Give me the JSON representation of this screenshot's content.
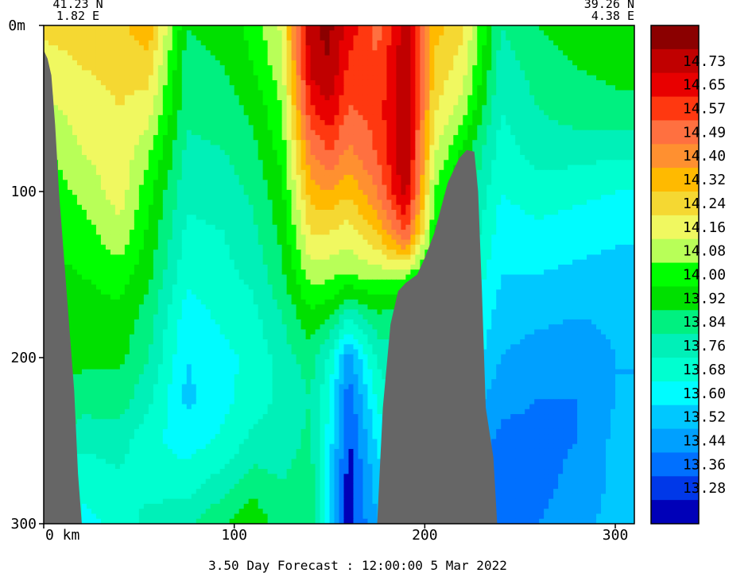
{
  "chart_data": {
    "type": "heatmap",
    "title": "",
    "caption": "3.50 Day Forecast : 12:00:00   5 Mar 2022",
    "xlabel": "",
    "ylabel": "",
    "x_units": "km",
    "y_units": "m",
    "xlim": [
      0,
      310
    ],
    "ylim": [
      0,
      300
    ],
    "y_inverted": true,
    "grid": false,
    "start_point": {
      "lat": "41.23 N",
      "lon": "1.82 E"
    },
    "end_point": {
      "lat": "39.26 N",
      "lon": "4.38 E"
    },
    "x_ticks": [
      {
        "value": 0,
        "label": "0 km"
      },
      {
        "value": 100,
        "label": "100"
      },
      {
        "value": 200,
        "label": "200"
      },
      {
        "value": 300,
        "label": "300"
      }
    ],
    "y_ticks": [
      {
        "value": 0,
        "label": "0m"
      },
      {
        "value": 100,
        "label": "100"
      },
      {
        "value": 200,
        "label": "200"
      },
      {
        "value": 300,
        "label": "300"
      }
    ],
    "colorbar": {
      "placement": "right",
      "levels": [
        {
          "label": "",
          "color": "#8b0000"
        },
        {
          "label": "14.73",
          "color": "#c00000"
        },
        {
          "label": "14.65",
          "color": "#e80000"
        },
        {
          "label": "14.57",
          "color": "#ff3810"
        },
        {
          "label": "14.49",
          "color": "#ff7040"
        },
        {
          "label": "14.40",
          "color": "#ff9030"
        },
        {
          "label": "14.32",
          "color": "#ffba00"
        },
        {
          "label": "14.24",
          "color": "#f5d832"
        },
        {
          "label": "14.16",
          "color": "#f0f860"
        },
        {
          "label": "14.08",
          "color": "#b8ff58"
        },
        {
          "label": "14.00",
          "color": "#00ff00"
        },
        {
          "label": "13.92",
          "color": "#00e000"
        },
        {
          "label": "13.84",
          "color": "#00f080"
        },
        {
          "label": "13.76",
          "color": "#00f0b8"
        },
        {
          "label": "13.68",
          "color": "#00ffd0"
        },
        {
          "label": "13.60",
          "color": "#00fcff"
        },
        {
          "label": "13.52",
          "color": "#00c8ff"
        },
        {
          "label": "13.44",
          "color": "#00a0ff"
        },
        {
          "label": "13.36",
          "color": "#0070ff"
        },
        {
          "label": "13.28",
          "color": "#0038e8"
        },
        {
          "label": "",
          "color": "#0000b8"
        }
      ]
    },
    "land_color": "#666666",
    "temperature_field": {
      "x_km": [
        0,
        20,
        40,
        55,
        75,
        95,
        110,
        125,
        140,
        150,
        160,
        175,
        190,
        205,
        220,
        240,
        260,
        280,
        300
      ],
      "depth_m": [
        0,
        25,
        50,
        75,
        100,
        125,
        150,
        175,
        200,
        225,
        250,
        275,
        300
      ],
      "values": [
        [
          14.18,
          14.2,
          14.22,
          14.3,
          13.84,
          13.88,
          13.95,
          14.1,
          14.72,
          14.75,
          14.62,
          14.45,
          14.7,
          14.28,
          14.18,
          13.76,
          13.84,
          13.88,
          13.9
        ],
        [
          14.12,
          14.16,
          14.18,
          14.2,
          13.8,
          13.84,
          13.92,
          14.05,
          14.68,
          14.73,
          14.55,
          14.5,
          14.72,
          14.22,
          14.12,
          13.72,
          13.8,
          13.84,
          13.86
        ],
        [
          14.05,
          14.12,
          14.16,
          14.12,
          13.78,
          13.8,
          13.86,
          14.0,
          14.55,
          14.65,
          14.48,
          14.52,
          14.74,
          14.18,
          14.04,
          13.68,
          13.76,
          13.8,
          13.82
        ],
        [
          13.98,
          14.08,
          14.14,
          14.02,
          13.74,
          13.76,
          13.82,
          13.95,
          14.4,
          14.5,
          14.38,
          14.5,
          14.74,
          14.1,
          13.9,
          13.64,
          13.72,
          13.72,
          13.7
        ],
        [
          13.94,
          14.02,
          14.12,
          13.95,
          13.7,
          13.72,
          13.78,
          13.9,
          14.28,
          14.32,
          14.25,
          14.4,
          14.7,
          14.0,
          13.82,
          13.6,
          13.64,
          13.62,
          13.6
        ],
        [
          13.92,
          13.96,
          14.06,
          13.9,
          13.66,
          13.68,
          13.74,
          13.86,
          14.16,
          14.16,
          14.12,
          14.24,
          14.5,
          13.92,
          13.78,
          13.56,
          13.58,
          13.56,
          13.54
        ],
        [
          13.9,
          13.92,
          13.96,
          13.86,
          13.62,
          13.66,
          13.7,
          13.82,
          14.04,
          14.02,
          14.0,
          14.04,
          14.02,
          13.84,
          13.72,
          13.52,
          13.52,
          13.5,
          13.48
        ],
        [
          13.88,
          13.88,
          13.9,
          13.8,
          13.56,
          13.62,
          13.66,
          13.76,
          13.9,
          13.86,
          13.7,
          13.82,
          13.8,
          13.76,
          13.66,
          13.48,
          13.46,
          13.44,
          13.46
        ],
        [
          13.86,
          13.86,
          13.86,
          13.76,
          13.52,
          13.58,
          13.62,
          13.72,
          13.8,
          13.66,
          13.4,
          13.7,
          13.76,
          13.72,
          13.6,
          13.44,
          13.4,
          13.38,
          13.44
        ],
        [
          13.84,
          13.8,
          13.8,
          13.7,
          13.5,
          13.58,
          13.64,
          13.7,
          13.76,
          13.6,
          13.3,
          13.62,
          13.7,
          13.68,
          13.52,
          13.38,
          13.36,
          13.36,
          13.44
        ],
        [
          13.82,
          13.7,
          13.72,
          13.62,
          13.56,
          13.62,
          13.7,
          13.72,
          13.78,
          13.56,
          13.26,
          13.54,
          13.64,
          13.62,
          13.44,
          13.34,
          13.34,
          13.36,
          13.46
        ],
        [
          13.8,
          13.62,
          13.66,
          13.64,
          13.64,
          13.72,
          13.8,
          13.76,
          13.8,
          13.52,
          13.24,
          13.48,
          13.6,
          13.56,
          13.38,
          13.3,
          13.34,
          13.38,
          13.46
        ],
        [
          13.8,
          13.58,
          13.62,
          13.72,
          13.74,
          13.84,
          13.9,
          13.8,
          13.82,
          13.5,
          13.24,
          13.44,
          13.56,
          13.5,
          13.34,
          13.28,
          13.36,
          13.4,
          13.48
        ]
      ]
    },
    "land_profile": {
      "left_slope": {
        "x_km": [
          0,
          2,
          4,
          6,
          8,
          12,
          16,
          18,
          20
        ],
        "depth_m": [
          15,
          20,
          30,
          60,
          100,
          160,
          220,
          270,
          300
        ]
      },
      "seamount": {
        "x_km": [
          175,
          178,
          182,
          186,
          190,
          196,
          200,
          205,
          212,
          218,
          222,
          226,
          228,
          230,
          232,
          236,
          238
        ],
        "depth_m": [
          300,
          230,
          180,
          160,
          155,
          150,
          140,
          125,
          95,
          80,
          75,
          76,
          100,
          160,
          230,
          260,
          300
        ]
      }
    }
  }
}
